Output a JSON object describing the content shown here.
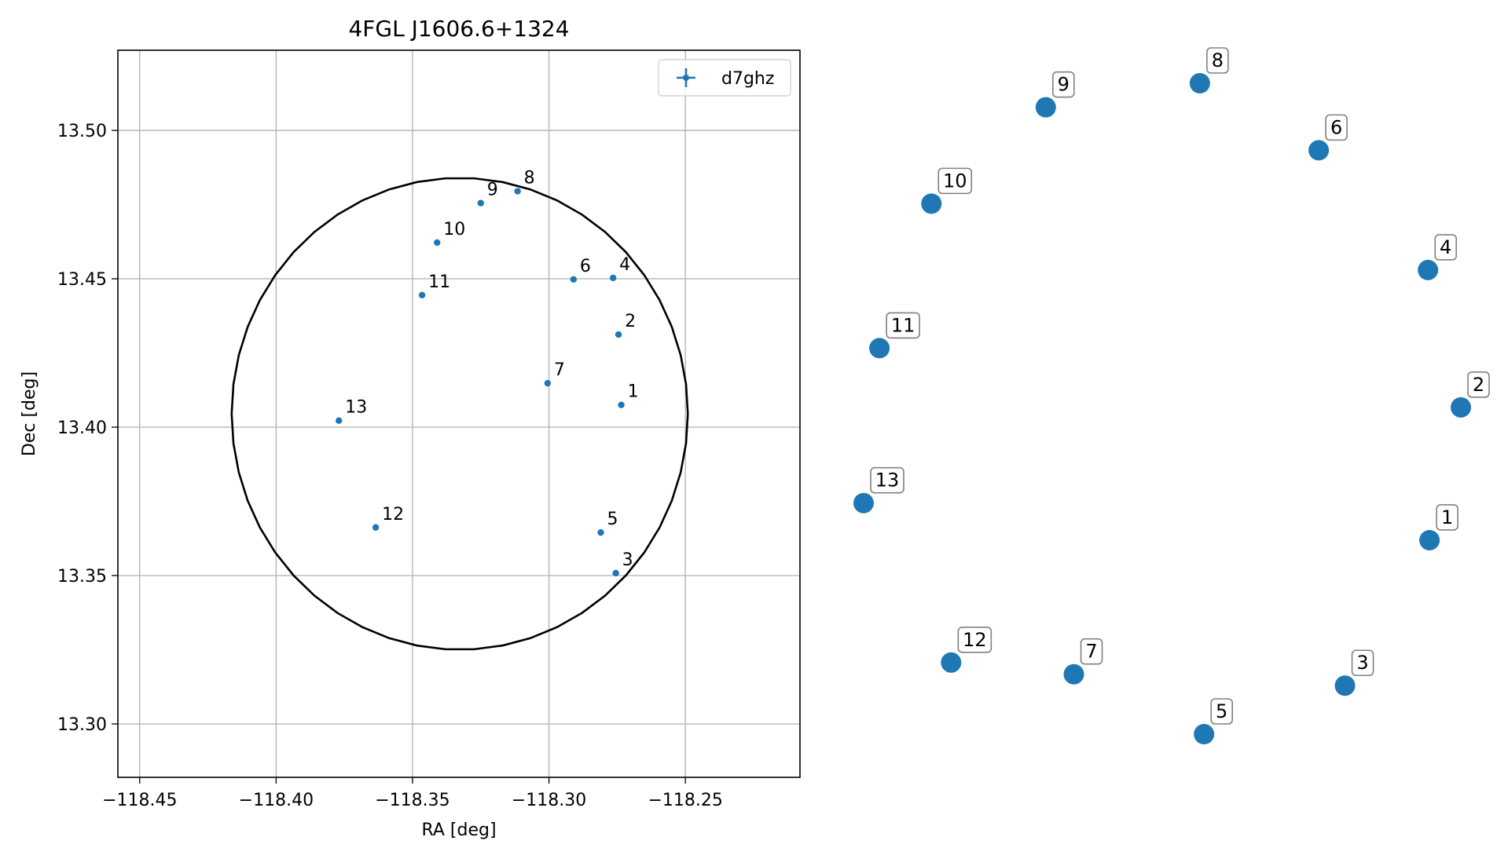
{
  "chart_data": [
    {
      "type": "scatter",
      "title": "4FGL J1606.6+1324",
      "xlabel": "RA [deg]",
      "ylabel": "Dec [deg]",
      "xlim": [
        -118.458,
        -118.208
      ],
      "ylim": [
        13.282,
        13.527
      ],
      "xticks": [
        -118.45,
        -118.4,
        -118.35,
        -118.3,
        -118.25
      ],
      "xtick_labels": [
        "−118.45",
        "−118.40",
        "−118.35",
        "−118.30",
        "−118.25"
      ],
      "yticks": [
        13.3,
        13.35,
        13.4,
        13.45,
        13.5
      ],
      "ytick_labels": [
        "13.30",
        "13.35",
        "13.40",
        "13.45",
        "13.50"
      ],
      "grid": true,
      "legend": {
        "placement": "top-right",
        "entries": [
          "d7ghz"
        ]
      },
      "series": [
        {
          "name": "d7ghz",
          "color": "#1f77b4",
          "marker": "errorbar-point",
          "points": [
            {
              "label": "1",
              "ra": -118.2735,
              "dec": 13.4075
            },
            {
              "label": "2",
              "ra": -118.2745,
              "dec": 13.4312
            },
            {
              "label": "3",
              "ra": -118.2755,
              "dec": 13.3508
            },
            {
              "label": "4",
              "ra": -118.2765,
              "dec": 13.4503
            },
            {
              "label": "5",
              "ra": -118.281,
              "dec": 13.3645
            },
            {
              "label": "6",
              "ra": -118.291,
              "dec": 13.4498
            },
            {
              "label": "7",
              "ra": -118.3005,
              "dec": 13.4148
            },
            {
              "label": "8",
              "ra": -118.3115,
              "dec": 13.4795
            },
            {
              "label": "9",
              "ra": -118.325,
              "dec": 13.4755
            },
            {
              "label": "10",
              "ra": -118.341,
              "dec": 13.4622
            },
            {
              "label": "11",
              "ra": -118.3465,
              "dec": 13.4445
            },
            {
              "label": "12",
              "ra": -118.3635,
              "dec": 13.3662
            },
            {
              "label": "13",
              "ra": -118.377,
              "dec": 13.4022
            }
          ]
        }
      ],
      "circle": {
        "center_ra": -118.3327,
        "center_dec": 13.4045,
        "radius_ra": 0.0836,
        "radius_dec": 0.0795,
        "color": "#000000"
      }
    },
    {
      "type": "scatter",
      "axes_visible": false,
      "color": "#1f77b4",
      "points": [
        {
          "label": "1",
          "x": 0.9475,
          "y": 0.702
        },
        {
          "label": "2",
          "x": 1.0,
          "y": 0.498
        },
        {
          "label": "3",
          "x": 0.806,
          "y": 0.9255
        },
        {
          "label": "4",
          "x": 0.945,
          "y": 0.287
        },
        {
          "label": "5",
          "x": 0.57,
          "y": 1.0
        },
        {
          "label": "6",
          "x": 0.762,
          "y": 0.103
        },
        {
          "label": "7",
          "x": 0.352,
          "y": 0.908
        },
        {
          "label": "8",
          "x": 0.563,
          "y": 0.0
        },
        {
          "label": "9",
          "x": 0.305,
          "y": 0.037
        },
        {
          "label": "10",
          "x": 0.1135,
          "y": 0.185
        },
        {
          "label": "11",
          "x": 0.0265,
          "y": 0.407
        },
        {
          "label": "12",
          "x": 0.1465,
          "y": 0.89
        },
        {
          "label": "13",
          "x": 0.0,
          "y": 0.645
        }
      ]
    }
  ]
}
